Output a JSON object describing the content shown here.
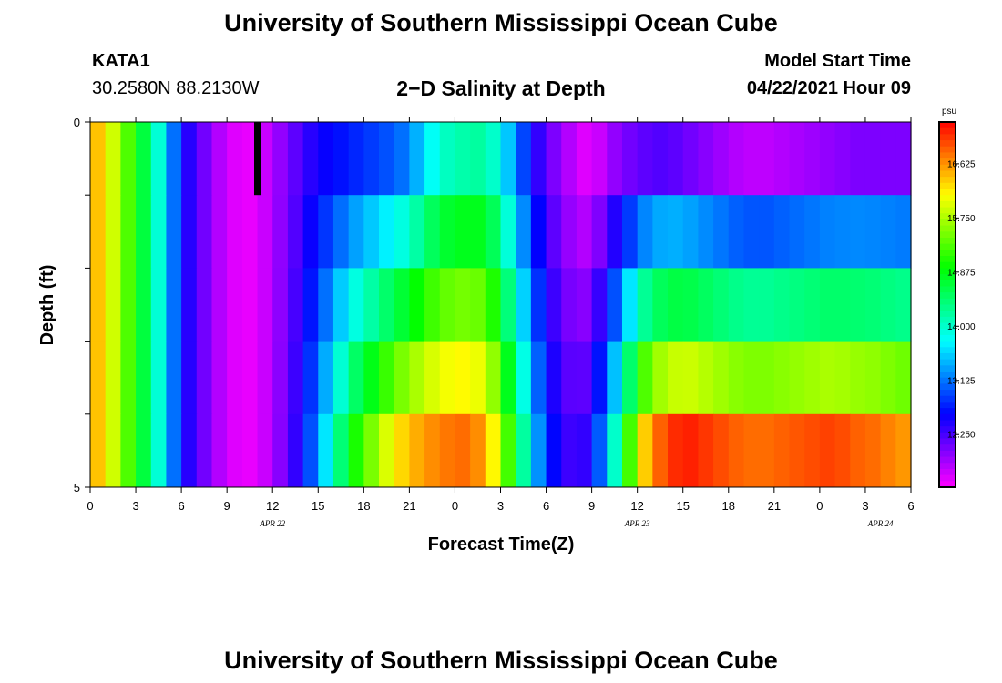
{
  "header": {
    "title_top": "University of Southern Mississippi Ocean Cube",
    "station": "KATA1",
    "coords": "30.2580N  88.2130W",
    "plot_title": "2−D Salinity at Depth",
    "model_start_label": "Model Start Time",
    "model_start_value": "04/22/2021 Hour 09",
    "title_bottom": "University of Southern Mississippi Ocean Cube"
  },
  "chart_data": {
    "type": "heatmap",
    "title": "2−D Salinity at Depth",
    "xlabel": "Forecast Time(Z)",
    "ylabel": "Depth (ft)",
    "xlim": [
      0,
      54
    ],
    "ylim": [
      0,
      5
    ],
    "x_ticks": [
      "0",
      "3",
      "6",
      "9",
      "12",
      "15",
      "18",
      "21",
      "0",
      "3",
      "6",
      "9",
      "12",
      "15",
      "18",
      "21",
      "0",
      "3",
      "6"
    ],
    "date_labels": [
      "APR  22",
      "APR  23",
      "APR  24"
    ],
    "y_tick_labels": [
      "0",
      "5"
    ],
    "colorbar": {
      "unit": "psu",
      "min": 11.4,
      "max": 17.3,
      "tick_values": [
        "12.250",
        "13.125",
        "14.000",
        "14.875",
        "15.750",
        "16.625"
      ]
    },
    "model_start_marker_hour": 11,
    "depth_bands": [
      0,
      1,
      2,
      3,
      4,
      5
    ],
    "surface_profile": [
      [
        0,
        16.6
      ],
      [
        1,
        16.2
      ],
      [
        2,
        15.6
      ],
      [
        3,
        15.0
      ],
      [
        4,
        14.3
      ],
      [
        5,
        13.6
      ],
      [
        6,
        12.6
      ],
      [
        7,
        12.2
      ],
      [
        8,
        11.9
      ],
      [
        9,
        11.6
      ],
      [
        10,
        11.5
      ],
      [
        11,
        11.5
      ],
      [
        12,
        11.8
      ],
      [
        13,
        12.0
      ],
      [
        14,
        12.3
      ],
      [
        15,
        12.5
      ],
      [
        16,
        12.6
      ],
      [
        17,
        12.7
      ],
      [
        18,
        12.8
      ],
      [
        19,
        12.9
      ],
      [
        20,
        13.0
      ],
      [
        21,
        13.2
      ],
      [
        22,
        13.6
      ],
      [
        23,
        14.0
      ],
      [
        24,
        14.1
      ],
      [
        25,
        14.2
      ],
      [
        26,
        14.2
      ],
      [
        27,
        13.8
      ],
      [
        28,
        13.2
      ],
      [
        29,
        12.6
      ],
      [
        30,
        12.1
      ],
      [
        31,
        11.9
      ],
      [
        32,
        11.6
      ],
      [
        33,
        11.5
      ],
      [
        34,
        11.8
      ],
      [
        35,
        12.0
      ],
      [
        36,
        12.1
      ],
      [
        37,
        12.2
      ],
      [
        38,
        12.2
      ],
      [
        39,
        12.1
      ],
      [
        40,
        12.0
      ],
      [
        41,
        11.9
      ],
      [
        42,
        11.8
      ],
      [
        43,
        11.7
      ],
      [
        44,
        11.7
      ],
      [
        45,
        11.7
      ],
      [
        46,
        11.8
      ],
      [
        47,
        11.8
      ],
      [
        48,
        11.9
      ],
      [
        49,
        11.9
      ],
      [
        50,
        12.0
      ],
      [
        51,
        12.0
      ],
      [
        52,
        12.0
      ],
      [
        53,
        12.0
      ],
      [
        54,
        12.0
      ]
    ],
    "bottom_profile": [
      [
        0,
        16.6
      ],
      [
        1,
        16.2
      ],
      [
        2,
        15.6
      ],
      [
        3,
        15.0
      ],
      [
        4,
        14.3
      ],
      [
        5,
        13.6
      ],
      [
        6,
        12.6
      ],
      [
        7,
        12.2
      ],
      [
        8,
        11.9
      ],
      [
        9,
        11.6
      ],
      [
        10,
        11.5
      ],
      [
        11,
        11.5
      ],
      [
        12,
        11.8
      ],
      [
        13,
        12.1
      ],
      [
        14,
        12.6
      ],
      [
        15,
        13.3
      ],
      [
        16,
        14.0
      ],
      [
        17,
        14.8
      ],
      [
        18,
        15.3
      ],
      [
        19,
        15.7
      ],
      [
        20,
        16.2
      ],
      [
        21,
        16.4
      ],
      [
        22,
        16.6
      ],
      [
        23,
        16.7
      ],
      [
        24,
        16.8
      ],
      [
        25,
        16.8
      ],
      [
        26,
        16.5
      ],
      [
        27,
        15.8
      ],
      [
        28,
        14.7
      ],
      [
        29,
        13.7
      ],
      [
        30,
        12.8
      ],
      [
        31,
        12.4
      ],
      [
        32,
        12.2
      ],
      [
        33,
        12.5
      ],
      [
        34,
        13.5
      ],
      [
        35,
        14.5
      ],
      [
        36,
        16.0
      ],
      [
        37,
        16.7
      ],
      [
        38,
        17.0
      ],
      [
        39,
        17.2
      ],
      [
        40,
        17.1
      ],
      [
        41,
        17.0
      ],
      [
        42,
        16.9
      ],
      [
        43,
        16.8
      ],
      [
        44,
        16.8
      ],
      [
        45,
        16.8
      ],
      [
        46,
        16.9
      ],
      [
        47,
        16.9
      ],
      [
        48,
        17.0
      ],
      [
        49,
        17.0
      ],
      [
        50,
        16.9
      ],
      [
        51,
        16.8
      ],
      [
        52,
        16.8
      ],
      [
        53,
        16.6
      ],
      [
        54,
        16.6
      ]
    ]
  }
}
